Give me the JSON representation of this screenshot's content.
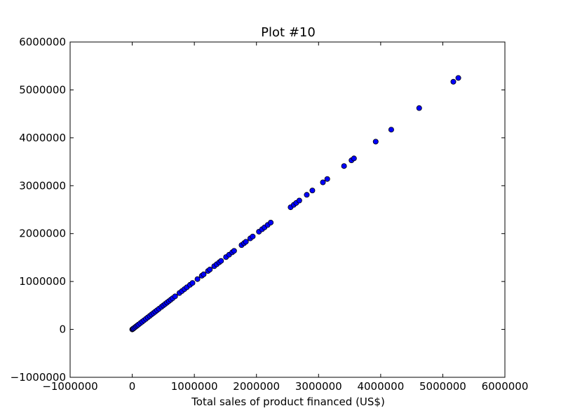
{
  "chart_data": {
    "type": "scatter",
    "title": "Plot #10",
    "xlabel": "Total sales of product financed (US$)",
    "ylabel": "",
    "xlim": [
      -1000000,
      6000000
    ],
    "ylim": [
      -1000000,
      6000000
    ],
    "xticks": [
      -1000000,
      0,
      1000000,
      2000000,
      3000000,
      4000000,
      5000000,
      6000000
    ],
    "yticks": [
      -1000000,
      0,
      1000000,
      2000000,
      3000000,
      4000000,
      5000000,
      6000000
    ],
    "xtick_labels": [
      "−1000000",
      "0",
      "1000000",
      "2000000",
      "3000000",
      "4000000",
      "5000000",
      "6000000"
    ],
    "ytick_labels": [
      "−1000000",
      "0",
      "1000000",
      "2000000",
      "3000000",
      "4000000",
      "5000000",
      "6000000"
    ],
    "grid": false,
    "marker_color": "#0000ff",
    "marker_edge": "#000000",
    "series": [
      {
        "points": [
          [
            0,
            0
          ],
          [
            10000,
            10000
          ],
          [
            20000,
            20000
          ],
          [
            40000,
            40000
          ],
          [
            60000,
            60000
          ],
          [
            80000,
            80000
          ],
          [
            100000,
            100000
          ],
          [
            130000,
            130000
          ],
          [
            160000,
            160000
          ],
          [
            190000,
            190000
          ],
          [
            220000,
            220000
          ],
          [
            250000,
            250000
          ],
          [
            280000,
            280000
          ],
          [
            310000,
            310000
          ],
          [
            340000,
            340000
          ],
          [
            370000,
            370000
          ],
          [
            400000,
            400000
          ],
          [
            430000,
            430000
          ],
          [
            470000,
            470000
          ],
          [
            500000,
            500000
          ],
          [
            530000,
            530000
          ],
          [
            560000,
            560000
          ],
          [
            590000,
            590000
          ],
          [
            620000,
            620000
          ],
          [
            650000,
            650000
          ],
          [
            690000,
            690000
          ],
          [
            760000,
            760000
          ],
          [
            800000,
            800000
          ],
          [
            840000,
            840000
          ],
          [
            880000,
            880000
          ],
          [
            930000,
            930000
          ],
          [
            970000,
            970000
          ],
          [
            1050000,
            1050000
          ],
          [
            1120000,
            1120000
          ],
          [
            1150000,
            1150000
          ],
          [
            1220000,
            1220000
          ],
          [
            1250000,
            1250000
          ],
          [
            1320000,
            1320000
          ],
          [
            1360000,
            1360000
          ],
          [
            1400000,
            1400000
          ],
          [
            1430000,
            1430000
          ],
          [
            1510000,
            1510000
          ],
          [
            1560000,
            1560000
          ],
          [
            1610000,
            1610000
          ],
          [
            1640000,
            1640000
          ],
          [
            1760000,
            1760000
          ],
          [
            1800000,
            1800000
          ],
          [
            1830000,
            1830000
          ],
          [
            1900000,
            1900000
          ],
          [
            1940000,
            1940000
          ],
          [
            2040000,
            2040000
          ],
          [
            2090000,
            2090000
          ],
          [
            2130000,
            2130000
          ],
          [
            2180000,
            2180000
          ],
          [
            2230000,
            2230000
          ],
          [
            2550000,
            2550000
          ],
          [
            2600000,
            2600000
          ],
          [
            2640000,
            2640000
          ],
          [
            2690000,
            2690000
          ],
          [
            2810000,
            2810000
          ],
          [
            2900000,
            2900000
          ],
          [
            3070000,
            3070000
          ],
          [
            3140000,
            3140000
          ],
          [
            3410000,
            3410000
          ],
          [
            3530000,
            3530000
          ],
          [
            3570000,
            3570000
          ],
          [
            3920000,
            3920000
          ],
          [
            4170000,
            4170000
          ],
          [
            4620000,
            4620000
          ],
          [
            5170000,
            5170000
          ],
          [
            5250000,
            5250000
          ]
        ]
      }
    ]
  }
}
